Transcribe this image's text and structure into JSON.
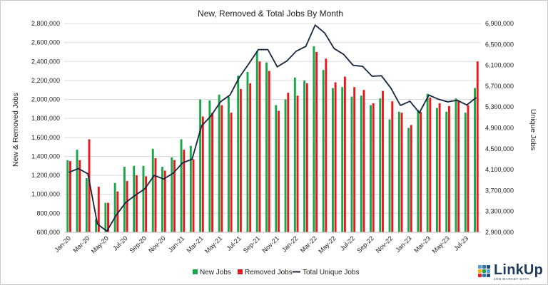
{
  "chart_data": {
    "type": "bar+line",
    "title": "New, Removed & Total Jobs By Month",
    "ylabel_left": "New & Removed Jobs",
    "ylabel_right": "Unique Jobs",
    "ylim_left": [
      600000,
      2800000
    ],
    "ylim_right": [
      2900000,
      6900000
    ],
    "y_ticks_left": [
      "600,000",
      "800,000",
      "1,000,000",
      "1,200,000",
      "1,400,000",
      "1,600,000",
      "1,800,000",
      "2,000,000",
      "2,200,000",
      "2,400,000",
      "2,600,000",
      "2,800,000"
    ],
    "y_ticks_right": [
      "2,900,000",
      "3,300,000",
      "3,700,000",
      "4,100,000",
      "4,500,000",
      "4,900,000",
      "5,300,000",
      "5,700,000",
      "6,100,000",
      "6,500,000",
      "6,900,000"
    ],
    "x_ticks": [
      "Jan-20",
      "Mar-20",
      "May-20",
      "Jul-20",
      "Sep-20",
      "Nov-20",
      "Jan-21",
      "Mar-21",
      "May-21",
      "Jul-21",
      "Sep-21",
      "Nov-21",
      "Jan-22",
      "Mar-22",
      "May-22",
      "Jul-22",
      "Sep-22",
      "Nov-22",
      "Jan-23",
      "Mar-23",
      "May-23",
      "Jul-23"
    ],
    "categories": [
      "Jan-20",
      "Feb-20",
      "Mar-20",
      "Apr-20",
      "May-20",
      "Jun-20",
      "Jul-20",
      "Aug-20",
      "Sep-20",
      "Oct-20",
      "Nov-20",
      "Dec-20",
      "Jan-21",
      "Feb-21",
      "Mar-21",
      "Apr-21",
      "May-21",
      "Jun-21",
      "Jul-21",
      "Aug-21",
      "Sep-21",
      "Oct-21",
      "Nov-21",
      "Dec-21",
      "Jan-22",
      "Feb-22",
      "Mar-22",
      "Apr-22",
      "May-22",
      "Jun-22",
      "Jul-22",
      "Aug-22",
      "Sep-22",
      "Oct-22",
      "Nov-22",
      "Dec-22",
      "Jan-23",
      "Feb-23",
      "Mar-23",
      "Apr-23",
      "May-23",
      "Jun-23",
      "Jul-23",
      "Aug-23"
    ],
    "series": [
      {
        "name": "New Jobs",
        "axis": "left",
        "kind": "bar",
        "color": "#1aa64a",
        "values": [
          1360000,
          1470000,
          1170000,
          740000,
          910000,
          1120000,
          1290000,
          1300000,
          1300000,
          1480000,
          1290000,
          1390000,
          1580000,
          1510000,
          2000000,
          1990000,
          2050000,
          2030000,
          2250000,
          2290000,
          2510000,
          2390000,
          1940000,
          2000000,
          2230000,
          2200000,
          2560000,
          2310000,
          2120000,
          2130000,
          2030000,
          2040000,
          1940000,
          2010000,
          1790000,
          1870000,
          1700000,
          1890000,
          2060000,
          1910000,
          1870000,
          2010000,
          1860000,
          2120000
        ]
      },
      {
        "name": "Removed Jobs",
        "axis": "left",
        "kind": "bar",
        "color": "#e8191d",
        "values": [
          1350000,
          1360000,
          1580000,
          1080000,
          910000,
          1030000,
          1140000,
          1200000,
          1190000,
          1380000,
          1250000,
          1360000,
          1470000,
          1370000,
          1820000,
          1860000,
          1940000,
          1860000,
          2110000,
          2170000,
          2400000,
          2300000,
          1880000,
          2070000,
          2040000,
          2170000,
          2500000,
          2430000,
          2180000,
          2240000,
          2130000,
          2100000,
          1960000,
          2090000,
          1980000,
          1860000,
          1730000,
          1870000,
          2020000,
          1960000,
          1930000,
          1990000,
          1940000,
          2400000
        ]
      },
      {
        "name": "Total Unique Jobs",
        "axis": "right",
        "kind": "line",
        "color": "#14253d",
        "values": [
          4050000,
          4120000,
          4020000,
          3060000,
          2920000,
          3230000,
          3470000,
          3610000,
          3730000,
          3990000,
          3920000,
          4030000,
          4230000,
          4300000,
          4940000,
          5130000,
          5400000,
          5530000,
          5870000,
          6130000,
          6400000,
          6400000,
          6070000,
          6180000,
          6370000,
          6460000,
          6870000,
          6720000,
          6420000,
          6310000,
          6100000,
          6080000,
          5890000,
          5900000,
          5660000,
          5330000,
          5410000,
          5190000,
          5530000,
          5450000,
          5400000,
          5430000,
          5340000,
          5480000
        ]
      }
    ],
    "legend": {
      "position": "bottom",
      "items": [
        "New Jobs",
        "Removed Jobs",
        "Total Unique Jobs"
      ]
    },
    "grid": "horizontal"
  },
  "brand": {
    "name": "LinkUp",
    "tagline": "JOB MARKET DATA",
    "mark_colors": [
      "#5a9bd5",
      "#2e75b6",
      "#1f4e79",
      "#f4b400",
      "#1aa64a",
      "#5a9bd5",
      "#e8191d",
      "#2e75b6",
      "#1f4e79"
    ]
  }
}
